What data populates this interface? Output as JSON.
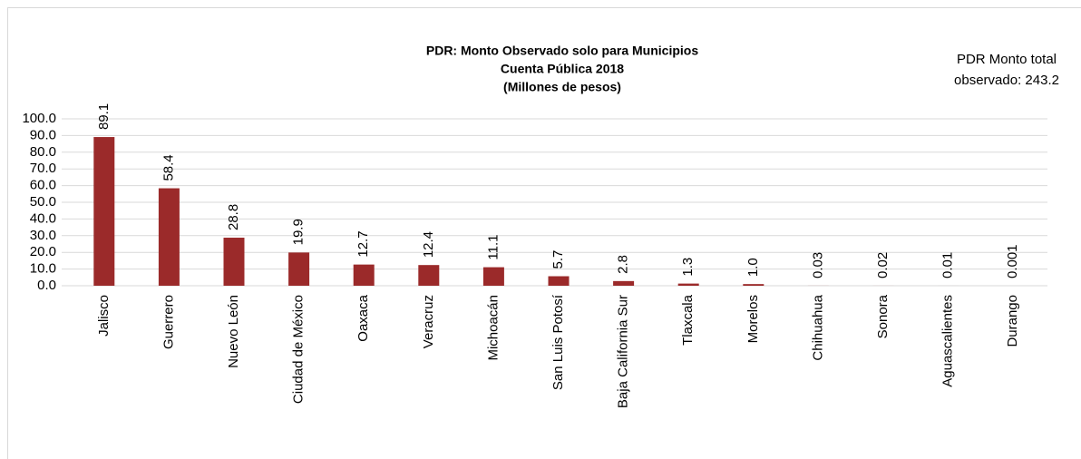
{
  "chart_data": {
    "type": "bar",
    "title": "PDR: Monto Observado solo para Municipios",
    "subtitle": [
      "Cuenta Pública 2018",
      "(Millones de pesos)"
    ],
    "annotation": [
      "PDR Monto total",
      "observado: 243.2"
    ],
    "categories": [
      "Jalisco",
      "Guerrero",
      "Nuevo León",
      "Ciudad de México",
      "Oaxaca",
      "Veracruz",
      "Michoacán",
      "San Luis Potosí",
      "Baja California Sur",
      "Tlaxcala",
      "Morelos",
      "Chihuahua",
      "Sonora",
      "Aguascalientes",
      "Durango"
    ],
    "values": [
      89.1,
      58.4,
      28.8,
      19.9,
      12.7,
      12.4,
      11.1,
      5.7,
      2.8,
      1.3,
      1.0,
      0.03,
      0.02,
      0.01,
      0.001
    ],
    "value_labels": [
      "89.1",
      "58.4",
      "28.8",
      "19.9",
      "12.7",
      "12.4",
      "11.1",
      "5.7",
      "2.8",
      "1.3",
      "1.0",
      "0.03",
      "0.02",
      "0.01",
      "0.001"
    ],
    "color": "#9b2a2a",
    "ylim": [
      0,
      100
    ],
    "yticks": [
      {
        "value": 0,
        "label": "0.0"
      },
      {
        "value": 10,
        "label": "10.0"
      },
      {
        "value": 20,
        "label": "20.0"
      },
      {
        "value": 30,
        "label": "30.0"
      },
      {
        "value": 40,
        "label": "40.0"
      },
      {
        "value": 50,
        "label": "50.0"
      },
      {
        "value": 60,
        "label": "60.0"
      },
      {
        "value": 70,
        "label": "70.0"
      },
      {
        "value": 80,
        "label": "80.0"
      },
      {
        "value": 90,
        "label": "90.0"
      },
      {
        "value": 100,
        "label": "100.0"
      }
    ],
    "grid": true
  }
}
